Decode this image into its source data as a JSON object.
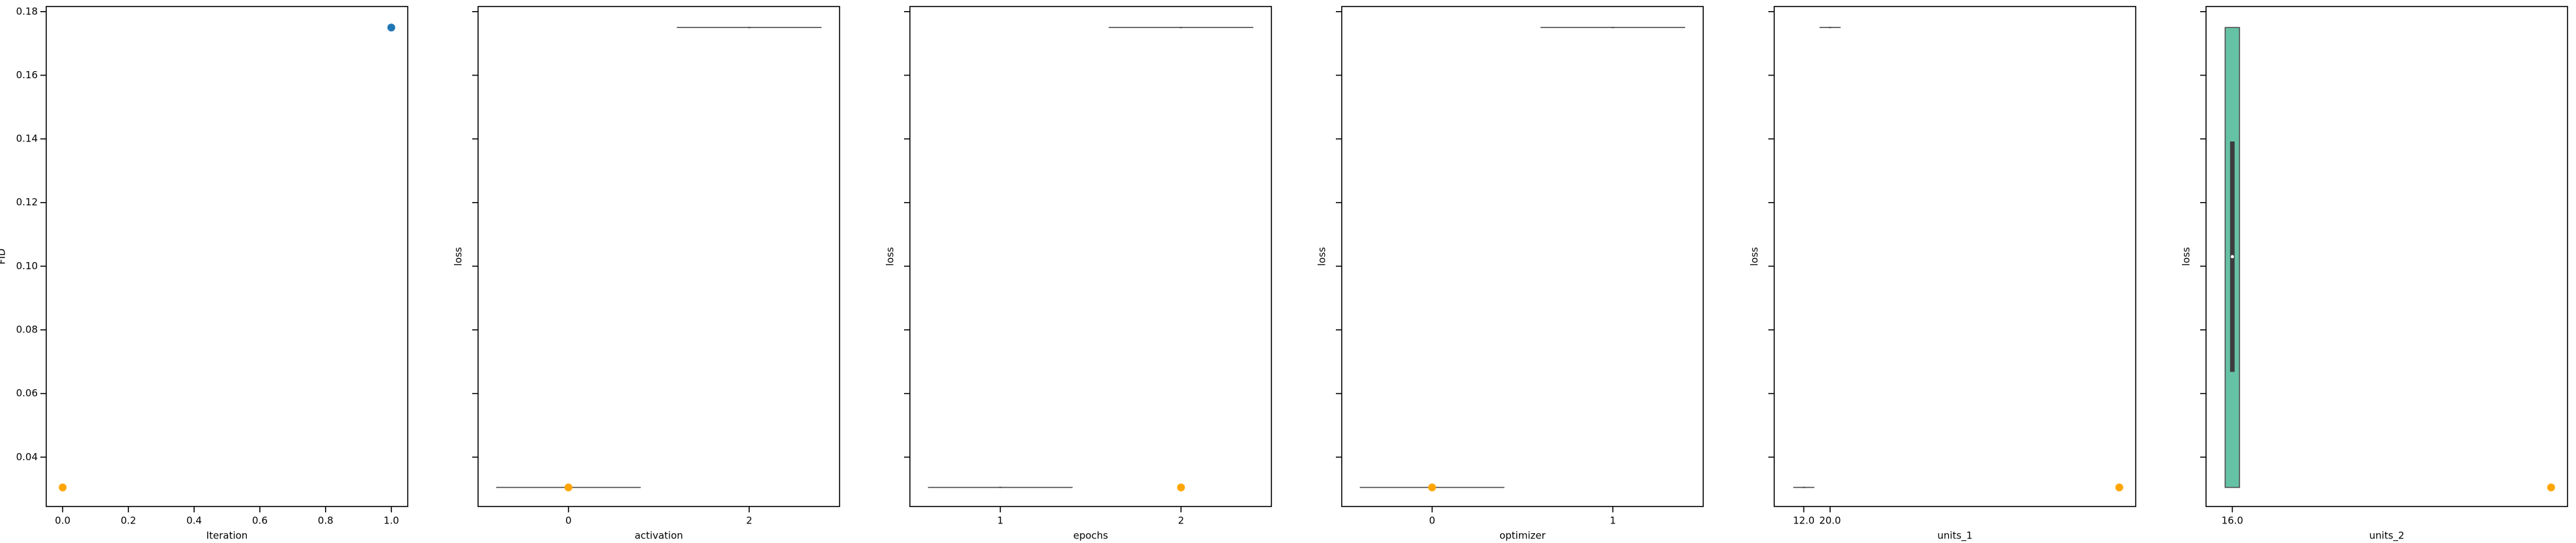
{
  "chart_data": [
    {
      "type": "scatter",
      "xlabel": "Iteration",
      "ylabel": "FID",
      "xlim": [
        -0.05,
        1.05
      ],
      "xticks": [
        {
          "value": 0,
          "label": "0.0"
        },
        0.2,
        0.4,
        0.6,
        0.8,
        {
          "value": 1,
          "label": "1.0"
        }
      ],
      "ylim": [
        0.0245,
        0.1816
      ],
      "yticks": [
        0.04,
        0.06,
        0.08,
        {
          "value": 0.1,
          "label": "0.10"
        },
        0.12,
        0.14,
        0.16,
        0.18
      ],
      "show_ytick_labels": true,
      "series": [
        {
          "color": "#1f77b4",
          "x": [
            1
          ],
          "values": [
            0.175
          ]
        },
        {
          "color": "#ffa500",
          "x": [
            0
          ],
          "values": [
            0.0305
          ]
        }
      ]
    },
    {
      "type": "box",
      "xlabel": "activation",
      "ylabel": "loss",
      "xlim": [
        -1,
        3
      ],
      "xticks": [
        0,
        2
      ],
      "ylim": [
        0.0245,
        0.1816
      ],
      "yticks": [
        0.04,
        0.06,
        0.08,
        0.1,
        0.12,
        0.14,
        0.16,
        0.18
      ],
      "show_ytick_labels": false,
      "box_color": "#66c2a5",
      "boxes": [
        {
          "x": 0,
          "low": 0.0305,
          "high": 0.0305,
          "median": 0.0305
        },
        {
          "x": 2,
          "low": 0.175,
          "high": 0.175,
          "median": 0.175
        }
      ],
      "points": {
        "color": "#ffa500",
        "x": [
          0
        ],
        "y": [
          0.0305
        ]
      }
    },
    {
      "type": "box",
      "xlabel": "epochs",
      "ylabel": "loss",
      "xlim": [
        0.5,
        2.5
      ],
      "xticks": [
        1,
        2
      ],
      "ylim": [
        0.0245,
        0.1816
      ],
      "yticks": [
        0.04,
        0.06,
        0.08,
        0.1,
        0.12,
        0.14,
        0.16,
        0.18
      ],
      "show_ytick_labels": false,
      "box_color": "#66c2a5",
      "boxes": [
        {
          "x": 1,
          "low": 0.0305,
          "high": 0.0305,
          "median": 0.0305
        },
        {
          "x": 2,
          "low": 0.175,
          "high": 0.175,
          "median": 0.175
        }
      ],
      "points": {
        "color": "#ffa500",
        "x": [
          2
        ],
        "y": [
          0.0305
        ]
      }
    },
    {
      "type": "box",
      "xlabel": "optimizer",
      "ylabel": "loss",
      "xlim": [
        -0.5,
        1.5
      ],
      "xticks": [
        0,
        1
      ],
      "ylim": [
        0.0245,
        0.1816
      ],
      "yticks": [
        0.04,
        0.06,
        0.08,
        0.1,
        0.12,
        0.14,
        0.16,
        0.18
      ],
      "show_ytick_labels": false,
      "box_color": "#66c2a5",
      "boxes": [
        {
          "x": 0,
          "low": 0.0305,
          "high": 0.0305,
          "median": 0.0305
        },
        {
          "x": 1,
          "low": 0.175,
          "high": 0.175,
          "median": 0.175
        }
      ],
      "points": {
        "color": "#ffa500",
        "x": [
          0
        ],
        "y": [
          0.0305
        ]
      }
    },
    {
      "type": "box",
      "xlabel": "units_1",
      "ylabel": "loss",
      "xlim": [
        3,
        113
      ],
      "xticks": [
        {
          "value": 12,
          "label": "12.0"
        },
        {
          "value": 20,
          "label": "20.0"
        }
      ],
      "ylim": [
        0.0245,
        0.1816
      ],
      "yticks": [
        0.04,
        0.06,
        0.08,
        0.1,
        0.12,
        0.14,
        0.16,
        0.18
      ],
      "show_ytick_labels": false,
      "box_color": "#66c2a5",
      "boxes": [
        {
          "x": 12,
          "low": 0.0305,
          "high": 0.0305,
          "median": 0.0305
        },
        {
          "x": 20,
          "low": 0.175,
          "high": 0.175,
          "median": 0.175
        }
      ],
      "points": {
        "color": "#ffa500",
        "x": [
          108
        ],
        "y": [
          0.0305
        ]
      }
    },
    {
      "type": "violin",
      "xlabel": "units_2",
      "ylabel": "loss",
      "xlim": [
        8,
        118
      ],
      "xticks": [
        {
          "value": 16,
          "label": "16.0"
        }
      ],
      "ylim": [
        0.0245,
        0.1816
      ],
      "yticks": [
        0.04,
        0.06,
        0.08,
        0.1,
        0.12,
        0.14,
        0.16,
        0.18
      ],
      "show_ytick_labels": false,
      "box_color": "#66c2a5",
      "boxes": [
        {
          "x": 16,
          "low": 0.0305,
          "high": 0.175,
          "q1": 0.0668,
          "q3": 0.1392,
          "median": 0.103
        }
      ],
      "points": {
        "color": "#ffa500",
        "x": [
          113
        ],
        "y": [
          0.0305
        ]
      }
    }
  ]
}
